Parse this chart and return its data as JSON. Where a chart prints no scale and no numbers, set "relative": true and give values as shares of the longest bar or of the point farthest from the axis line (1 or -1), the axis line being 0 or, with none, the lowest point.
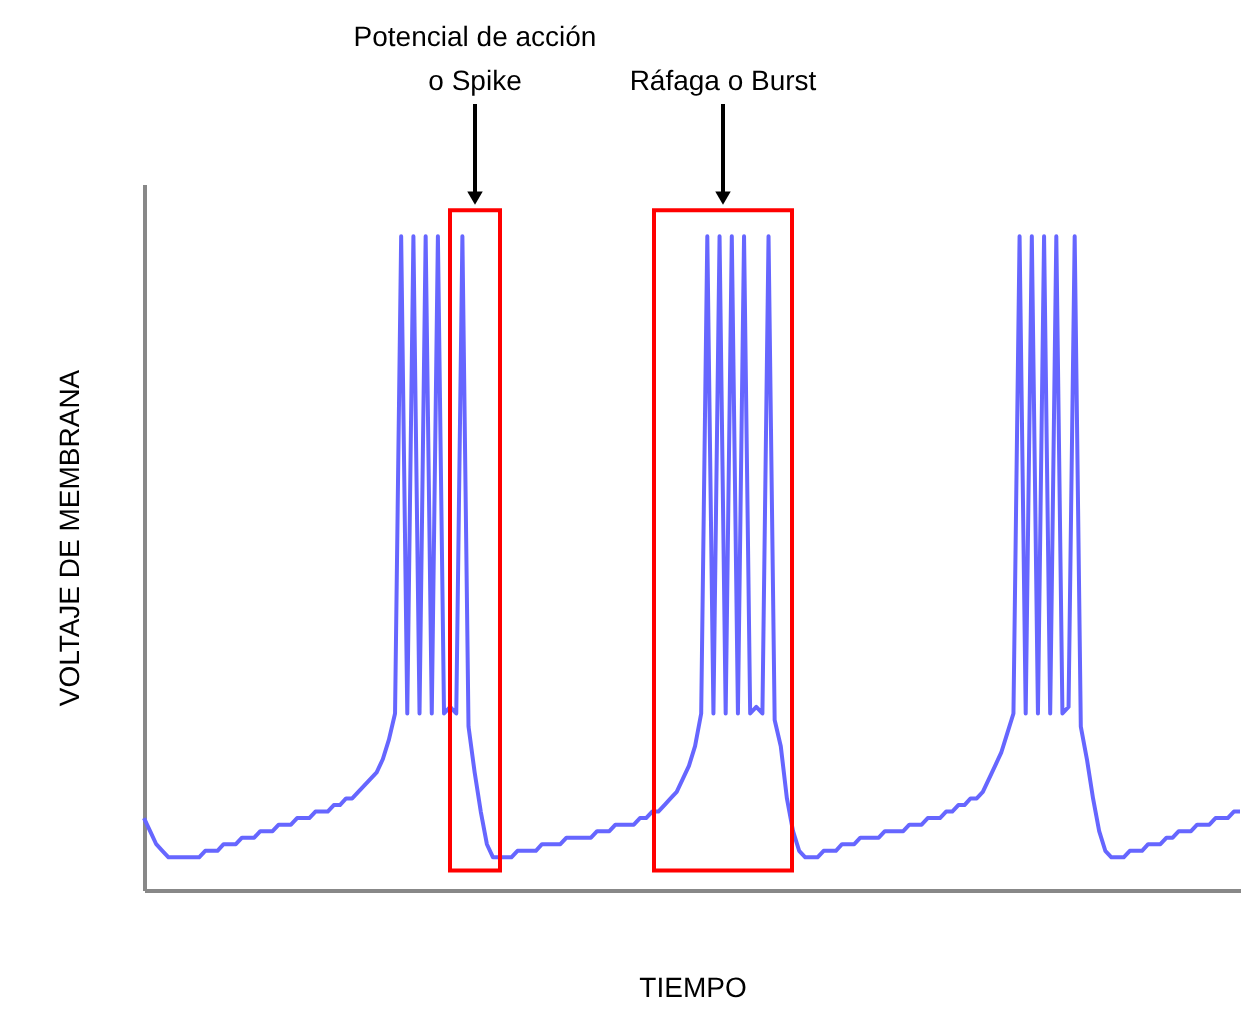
{
  "chart_data": {
    "type": "line",
    "relative": true,
    "xlabel": "TIEMPO",
    "ylabel": "VOLTAJE DE MEMBRANA",
    "grid": false,
    "marker": "none",
    "line_style": "solid",
    "categories": [
      null,
      null,
      null,
      null,
      null,
      null,
      null,
      null,
      null,
      null,
      null,
      null,
      null,
      null,
      null,
      null,
      null,
      null,
      null,
      null,
      null,
      null,
      null,
      null,
      null,
      null,
      null,
      null,
      null,
      null,
      null,
      null,
      null,
      null,
      null,
      null,
      null,
      null,
      null,
      null,
      null,
      null,
      null,
      null,
      null,
      null,
      null,
      null,
      null,
      null,
      null,
      null,
      null,
      null,
      null,
      null,
      null,
      null,
      null,
      null,
      null,
      null,
      null,
      null,
      null,
      null,
      null,
      null,
      null,
      null,
      null,
      null,
      null,
      null,
      null,
      null,
      null,
      null,
      null,
      null,
      null,
      null,
      null,
      null,
      null,
      null,
      null,
      null,
      null,
      null,
      null,
      null,
      null,
      null,
      null,
      null,
      null,
      null,
      null,
      null,
      null,
      null,
      null,
      null,
      null,
      null,
      null,
      null,
      null,
      null,
      null,
      null,
      null,
      null,
      null,
      null,
      null,
      null,
      null,
      null,
      null,
      null,
      null,
      null,
      null,
      null,
      null,
      null,
      null,
      null,
      null,
      null,
      null,
      null,
      null,
      null,
      null,
      null,
      null,
      null,
      null,
      null,
      null,
      null,
      null,
      null,
      null,
      null,
      null,
      null,
      null,
      null,
      null,
      null,
      null,
      null,
      null,
      null,
      null,
      null,
      null,
      null,
      null,
      null,
      null,
      null,
      null,
      null,
      null,
      null,
      null,
      null,
      null,
      null,
      null,
      null,
      null,
      null,
      null,
      null
    ],
    "series": [
      {
        "color": "#6666ff",
        "values": [
          0.11,
          0.09,
          0.07,
          0.06,
          0.05,
          0.05,
          0.05,
          0.05,
          0.05,
          0.05,
          0.06,
          0.06,
          0.06,
          0.07,
          0.07,
          0.07,
          0.08,
          0.08,
          0.08,
          0.09,
          0.09,
          0.09,
          0.1,
          0.1,
          0.1,
          0.11,
          0.11,
          0.11,
          0.12,
          0.12,
          0.12,
          0.13,
          0.13,
          0.14,
          0.14,
          0.15,
          0.16,
          0.17,
          0.18,
          0.2,
          0.23,
          0.27,
          1.0,
          0.27,
          1.0,
          0.27,
          1.0,
          0.27,
          1.0,
          0.27,
          0.28,
          0.27,
          1.0,
          0.25,
          0.18,
          0.12,
          0.07,
          0.05,
          0.05,
          0.05,
          0.05,
          0.06,
          0.06,
          0.06,
          0.06,
          0.07,
          0.07,
          0.07,
          0.07,
          0.08,
          0.08,
          0.08,
          0.08,
          0.08,
          0.09,
          0.09,
          0.09,
          0.1,
          0.1,
          0.1,
          0.1,
          0.11,
          0.11,
          0.12,
          0.12,
          0.13,
          0.14,
          0.15,
          0.17,
          0.19,
          0.22,
          0.27,
          1.0,
          0.27,
          1.0,
          0.27,
          1.0,
          0.27,
          1.0,
          0.27,
          0.28,
          0.27,
          1.0,
          0.26,
          0.22,
          0.14,
          0.09,
          0.06,
          0.05,
          0.05,
          0.05,
          0.06,
          0.06,
          0.06,
          0.07,
          0.07,
          0.07,
          0.08,
          0.08,
          0.08,
          0.08,
          0.09,
          0.09,
          0.09,
          0.09,
          0.1,
          0.1,
          0.1,
          0.11,
          0.11,
          0.11,
          0.12,
          0.12,
          0.13,
          0.13,
          0.14,
          0.14,
          0.15,
          0.17,
          0.19,
          0.21,
          0.24,
          0.27,
          1.0,
          0.27,
          1.0,
          0.27,
          1.0,
          0.27,
          1.0,
          0.27,
          0.28,
          1.0,
          0.25,
          0.2,
          0.14,
          0.09,
          0.06,
          0.05,
          0.05,
          0.05,
          0.06,
          0.06,
          0.06,
          0.07,
          0.07,
          0.07,
          0.08,
          0.08,
          0.09,
          0.09,
          0.09,
          0.1,
          0.1,
          0.1,
          0.11,
          0.11,
          0.11,
          0.12,
          0.12
        ]
      }
    ],
    "annotations": [
      "Potencial de acción\no Spike",
      "Ráfaga o Burst"
    ]
  }
}
